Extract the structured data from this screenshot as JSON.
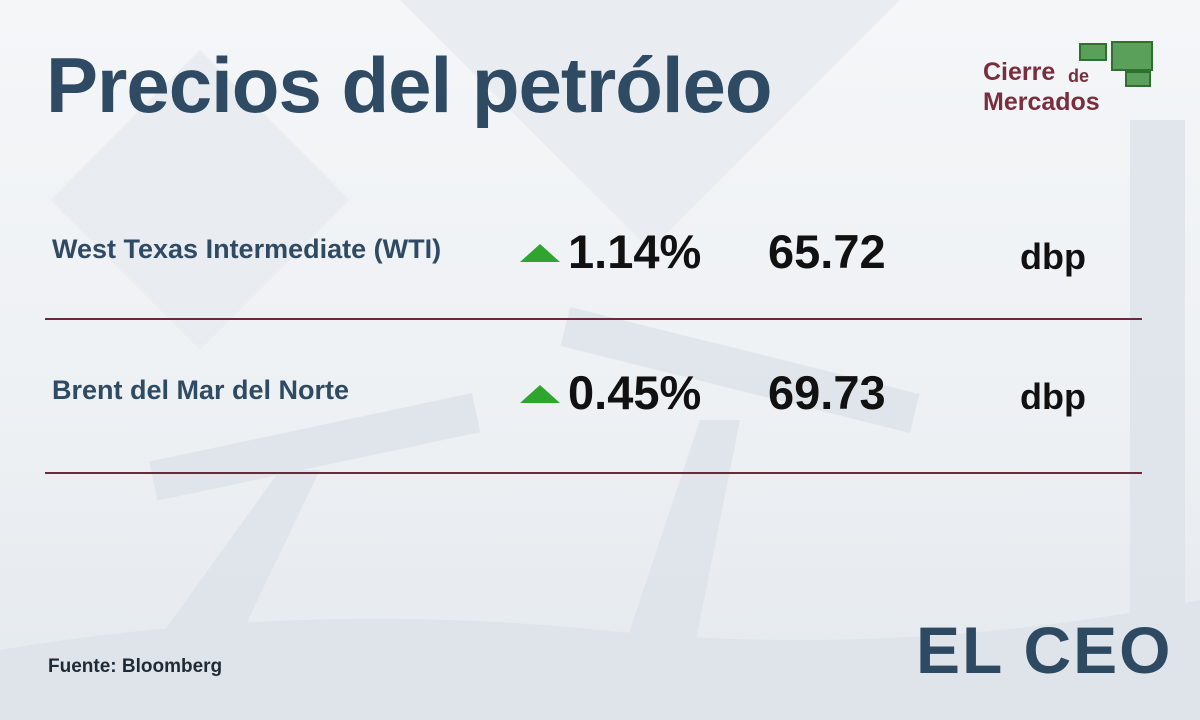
{
  "header": {
    "title": "Precios del petróleo",
    "badge": {
      "line1": "Cierre",
      "line2": "de",
      "line3": "Mercados"
    }
  },
  "table": {
    "rows": [
      [
        "West Texas Intermediate (WTI)",
        "1.14%",
        "65.72",
        "dbp"
      ],
      [
        "Brent del Mar del Norte",
        "0.45%",
        "69.73",
        "dbp"
      ]
    ]
  },
  "footer": {
    "source": "Fuente: Bloomberg",
    "logo": "EL CEO"
  }
}
